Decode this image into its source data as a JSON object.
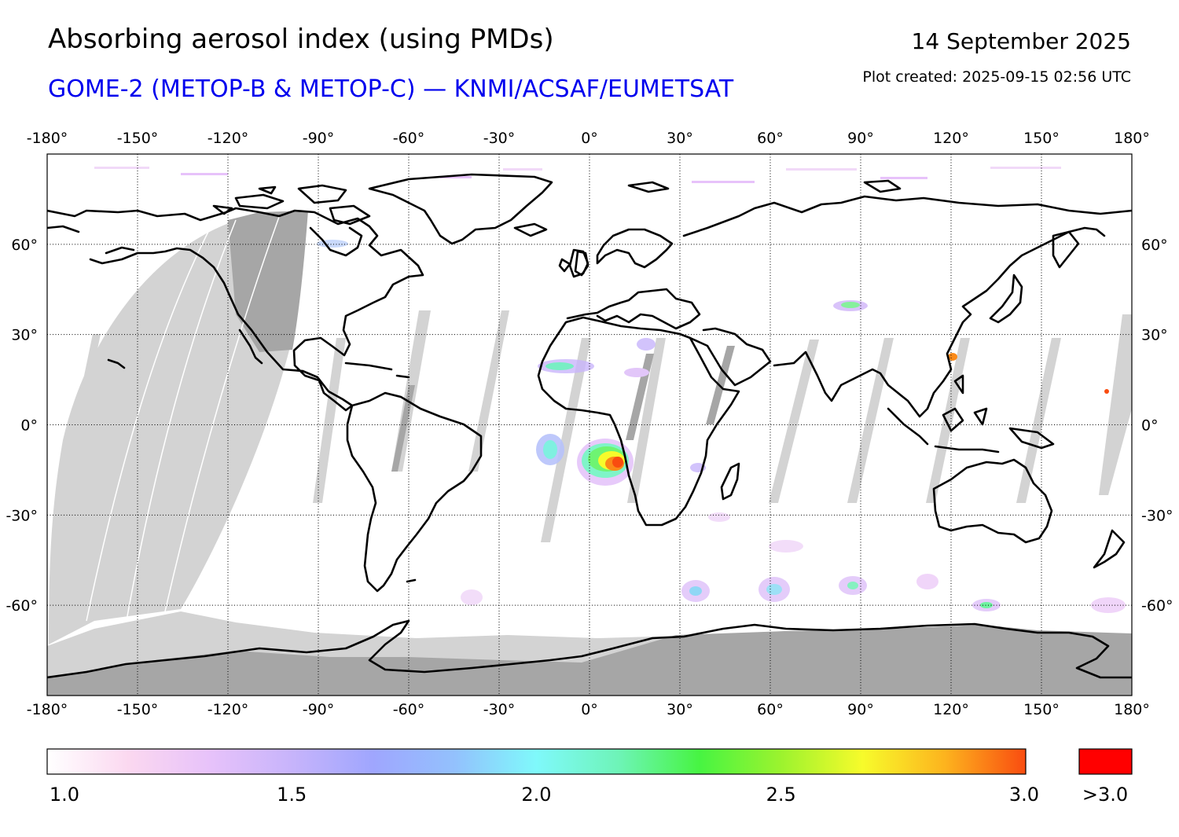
{
  "header": {
    "title": "Absorbing aerosol index (using PMDs)",
    "subtitle": "GOME-2 (METOP-B & METOP-C) — KNMI/ACSAF/EUMETSAT",
    "date": "14 September 2025",
    "created": "Plot created: 2025-09-15 02:56 UTC"
  },
  "map": {
    "projection": "equirectangular",
    "lon_range": [
      -180,
      180
    ],
    "lat_range": [
      -90,
      90
    ],
    "lon_ticks": [
      -180,
      -150,
      -120,
      -90,
      -60,
      -30,
      0,
      30,
      60,
      90,
      120,
      150,
      180
    ],
    "lon_labels": [
      "-180°",
      "-150°",
      "-120°",
      "-90°",
      "-60°",
      "-30°",
      "0°",
      "30°",
      "60°",
      "90°",
      "120°",
      "150°",
      "180°"
    ],
    "lat_ticks": [
      60,
      30,
      0,
      -30,
      -60
    ],
    "lat_labels": [
      "60°",
      "30°",
      "0°",
      "-30°",
      "-60°"
    ],
    "grid": "dotted",
    "colors": {
      "no_data_light": "#d3d3d3",
      "no_data_dark": "#a6a6a6",
      "coast": "#000000",
      "frame": "#000000"
    }
  },
  "colorbar": {
    "range": [
      1.0,
      3.0
    ],
    "tick_values": [
      1.0,
      1.5,
      2.0,
      2.5,
      3.0
    ],
    "tick_labels": [
      "1.0",
      "1.5",
      "2.0",
      "2.5",
      "3.0"
    ],
    "over_label": ">3.0",
    "stops": [
      "#ffffff",
      "#fbd8f0",
      "#e7c2fa",
      "#c7b4fb",
      "#9fa6fe",
      "#93c1fd",
      "#7ff9fb",
      "#6ef4b8",
      "#47f442",
      "#9cf32e",
      "#f7fb2b",
      "#fdb41e",
      "#f94c10"
    ],
    "over_color": "#ff0000"
  }
}
